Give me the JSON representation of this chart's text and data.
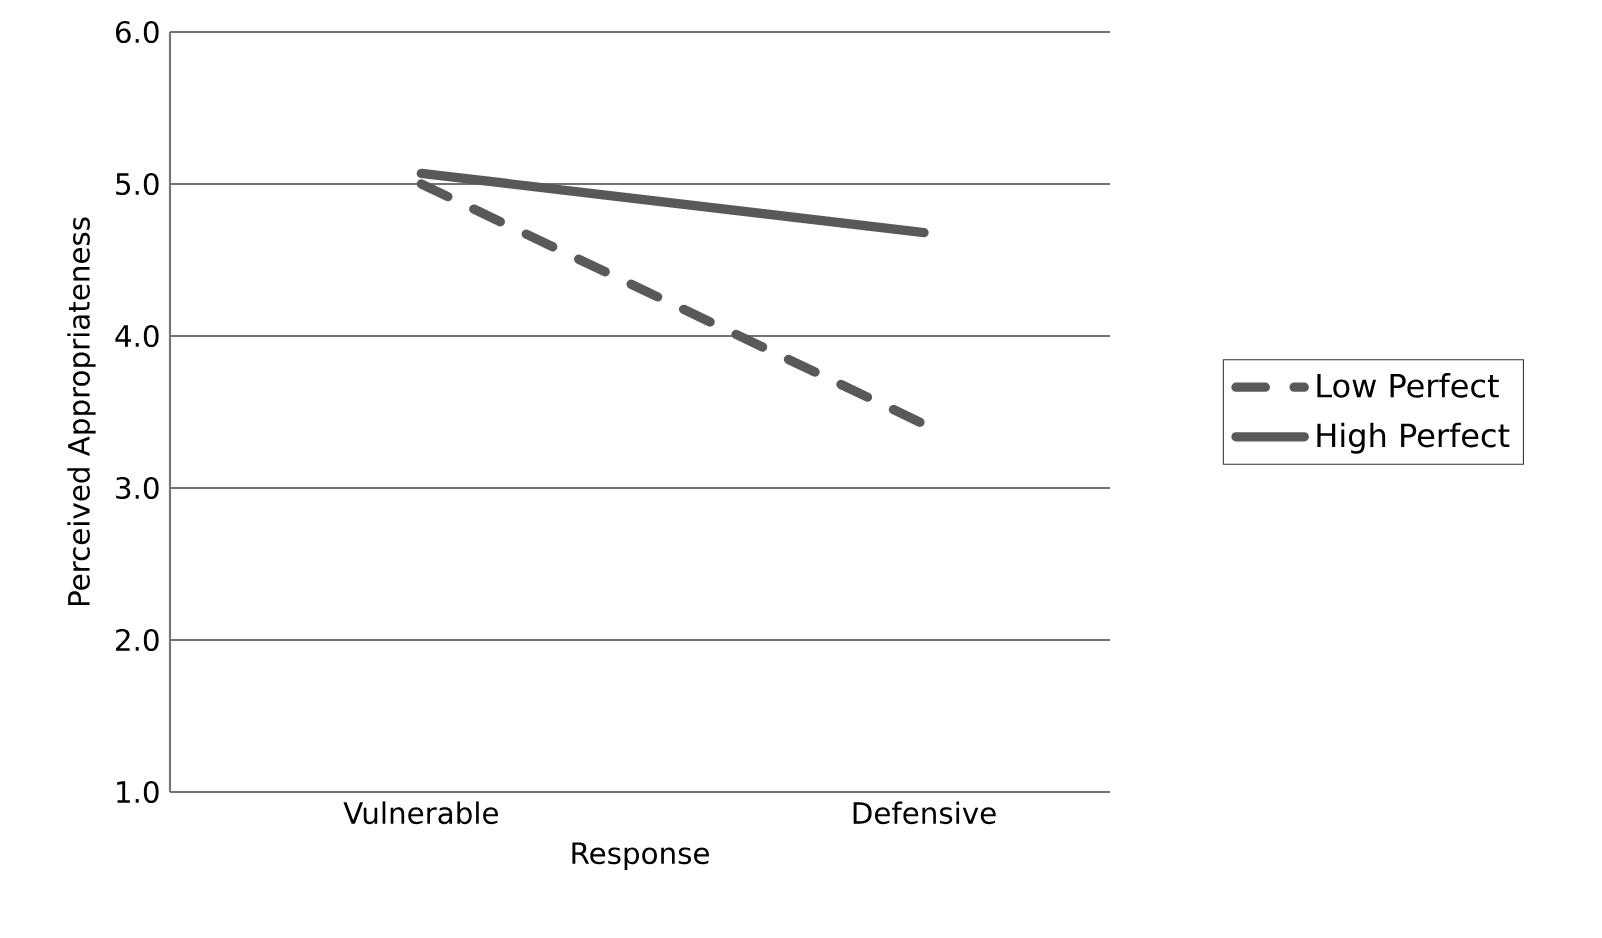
{
  "chart_data": {
    "type": "line",
    "xlabel": "Response",
    "ylabel": "Perceived Appropriateness",
    "categories": [
      "Vulnerable",
      "Defensive"
    ],
    "series": [
      {
        "name": "Low Perfect",
        "color": "#595959",
        "line_style": "dashed",
        "values": [
          5.0,
          3.42
        ]
      },
      {
        "name": "High Perfect",
        "color": "#595959",
        "line_style": "solid",
        "values": [
          5.07,
          4.68
        ]
      }
    ],
    "ylim": [
      1,
      6
    ],
    "yticks": [
      {
        "value": 1,
        "label": "1.0"
      },
      {
        "value": 2,
        "label": "2.0"
      },
      {
        "value": 3,
        "label": "3.0"
      },
      {
        "value": 4,
        "label": "4.0"
      },
      {
        "value": 5,
        "label": "5.0"
      },
      {
        "value": 6,
        "label": "6.0"
      }
    ],
    "grid": "y",
    "legend": "right",
    "marker": "none"
  }
}
